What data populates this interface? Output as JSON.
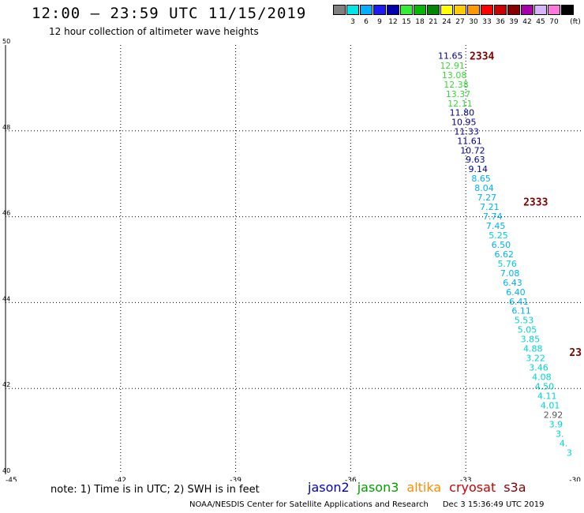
{
  "header": {
    "title": "12:00 – 23:59 UTC 11/15/2019",
    "subtitle": "12 hour collection of altimeter wave heights"
  },
  "colorbar": {
    "unit": "(ft)",
    "bins": [
      {
        "color": "#808080",
        "label": ""
      },
      {
        "color": "#00e5e5",
        "label": "3"
      },
      {
        "color": "#00b0ff",
        "label": "6"
      },
      {
        "color": "#1c1cf0",
        "label": "9"
      },
      {
        "color": "#0000b0",
        "label": "12"
      },
      {
        "color": "#33ee33",
        "label": "15"
      },
      {
        "color": "#00bb00",
        "label": "18"
      },
      {
        "color": "#008800",
        "label": "21"
      },
      {
        "color": "#ffff00",
        "label": "24"
      },
      {
        "color": "#ffcc00",
        "label": "27"
      },
      {
        "color": "#ff9900",
        "label": "30"
      },
      {
        "color": "#ff0000",
        "label": "33"
      },
      {
        "color": "#cc0000",
        "label": "36"
      },
      {
        "color": "#880000",
        "label": "39"
      },
      {
        "color": "#aa00aa",
        "label": "42"
      },
      {
        "color": "#d8b4ff",
        "label": "45"
      },
      {
        "color": "#ff77dd",
        "label": "70"
      },
      {
        "color": "#000000",
        "label": ""
      }
    ]
  },
  "axes": {
    "x_ticks": [
      {
        "value": -45,
        "label": "-45"
      },
      {
        "value": -42,
        "label": "-42"
      },
      {
        "value": -39,
        "label": "-39"
      },
      {
        "value": -36,
        "label": "-36"
      },
      {
        "value": -33,
        "label": "-33"
      },
      {
        "value": -30,
        "label": "-30"
      }
    ],
    "y_ticks": [
      {
        "value": 40,
        "label": "40"
      },
      {
        "value": 42,
        "label": "42"
      },
      {
        "value": 44,
        "label": "44"
      },
      {
        "value": 46,
        "label": "46"
      },
      {
        "value": 48,
        "label": "48"
      },
      {
        "value": 50,
        "label": "50"
      }
    ],
    "xlim": [
      -45,
      -30
    ],
    "ylim": [
      40,
      50
    ]
  },
  "colors": {
    "jason2": "#0000cc",
    "jason3": "#00a000",
    "altika": "#ff8c00",
    "cryosat": "#cc0000",
    "s3a": "#800000",
    "navy": "#00009a",
    "cyan": "#00d2d2",
    "green": "#33dd33",
    "gray": "#555555",
    "maroon": "#800000"
  },
  "track_labels": [
    {
      "text": "2334",
      "lon": -32.9,
      "lat": 49.75,
      "color": "#800000"
    },
    {
      "text": "2333",
      "lon": -31.5,
      "lat": 46.35,
      "color": "#800000"
    },
    {
      "text": "23",
      "lon": -30.3,
      "lat": 42.85,
      "color": "#800000"
    }
  ],
  "chart_data": {
    "type": "scatter",
    "xlim": [
      -45,
      -30
    ],
    "ylim": [
      40,
      50
    ],
    "grid": true,
    "points": [
      {
        "lon": -33.4,
        "lat": 49.75,
        "value": "11.65",
        "color": "#00009a"
      },
      {
        "lon": -33.35,
        "lat": 49.52,
        "value": "12.91",
        "color": "#33dd33"
      },
      {
        "lon": -33.3,
        "lat": 49.3,
        "value": "13.08",
        "color": "#33dd33"
      },
      {
        "lon": -33.25,
        "lat": 49.08,
        "value": "12.38",
        "color": "#33dd33"
      },
      {
        "lon": -33.2,
        "lat": 48.86,
        "value": "13.37",
        "color": "#33dd33"
      },
      {
        "lon": -33.15,
        "lat": 48.64,
        "value": "12.11",
        "color": "#33dd33"
      },
      {
        "lon": -33.1,
        "lat": 48.43,
        "value": "11.80",
        "color": "#00009a"
      },
      {
        "lon": -33.05,
        "lat": 48.21,
        "value": "10.95",
        "color": "#00009a"
      },
      {
        "lon": -32.98,
        "lat": 47.99,
        "value": "11.33",
        "color": "#00009a"
      },
      {
        "lon": -32.9,
        "lat": 47.77,
        "value": "11.61",
        "color": "#00009a"
      },
      {
        "lon": -32.82,
        "lat": 47.55,
        "value": "10.72",
        "color": "#00009a"
      },
      {
        "lon": -32.75,
        "lat": 47.33,
        "value": "9.63",
        "color": "#00009a"
      },
      {
        "lon": -32.68,
        "lat": 47.11,
        "value": "9.14",
        "color": "#00009a"
      },
      {
        "lon": -32.6,
        "lat": 46.89,
        "value": "8.65",
        "color": "#00b0ff"
      },
      {
        "lon": -32.52,
        "lat": 46.67,
        "value": "8.04",
        "color": "#00b0ff"
      },
      {
        "lon": -32.45,
        "lat": 46.45,
        "value": "7.27",
        "color": "#00b0ff"
      },
      {
        "lon": -32.38,
        "lat": 46.23,
        "value": "7.21",
        "color": "#00b0ff"
      },
      {
        "lon": -32.3,
        "lat": 46.01,
        "value": "7.74",
        "color": "#00b0ff"
      },
      {
        "lon": -32.22,
        "lat": 45.79,
        "value": "7.45",
        "color": "#00b0ff"
      },
      {
        "lon": -32.15,
        "lat": 45.57,
        "value": "5.25",
        "color": "#00d2d2"
      },
      {
        "lon": -32.08,
        "lat": 45.35,
        "value": "6.50",
        "color": "#00b0ff"
      },
      {
        "lon": -32.0,
        "lat": 45.13,
        "value": "6.62",
        "color": "#00b0ff"
      },
      {
        "lon": -31.92,
        "lat": 44.91,
        "value": "5.76",
        "color": "#00d2d2"
      },
      {
        "lon": -31.85,
        "lat": 44.69,
        "value": "7.08",
        "color": "#00b0ff"
      },
      {
        "lon": -31.78,
        "lat": 44.47,
        "value": "6.43",
        "color": "#00b0ff"
      },
      {
        "lon": -31.7,
        "lat": 44.25,
        "value": "6.40",
        "color": "#00b0ff"
      },
      {
        "lon": -31.62,
        "lat": 44.03,
        "value": "6.41",
        "color": "#00b0ff"
      },
      {
        "lon": -31.55,
        "lat": 43.81,
        "value": "6.11",
        "color": "#00b0ff"
      },
      {
        "lon": -31.48,
        "lat": 43.59,
        "value": "5.53",
        "color": "#00d2d2"
      },
      {
        "lon": -31.4,
        "lat": 43.37,
        "value": "5.05",
        "color": "#00d2d2"
      },
      {
        "lon": -31.32,
        "lat": 43.15,
        "value": "3.85",
        "color": "#00d2d2"
      },
      {
        "lon": -31.25,
        "lat": 42.93,
        "value": "4.88",
        "color": "#00d2d2"
      },
      {
        "lon": -31.18,
        "lat": 42.71,
        "value": "3.22",
        "color": "#00d2d2"
      },
      {
        "lon": -31.1,
        "lat": 42.49,
        "value": "3.46",
        "color": "#00d2d2"
      },
      {
        "lon": -31.02,
        "lat": 42.27,
        "value": "4.08",
        "color": "#00d2d2"
      },
      {
        "lon": -30.95,
        "lat": 42.05,
        "value": "4.50",
        "color": "#00d2d2"
      },
      {
        "lon": -30.88,
        "lat": 41.83,
        "value": "4.11",
        "color": "#00d2d2"
      },
      {
        "lon": -30.8,
        "lat": 41.61,
        "value": "4.01",
        "color": "#00d2d2"
      },
      {
        "lon": -30.72,
        "lat": 41.39,
        "value": "2.92",
        "color": "#555555"
      },
      {
        "lon": -30.65,
        "lat": 41.17,
        "value": "3.9",
        "color": "#00d2d2"
      },
      {
        "lon": -30.55,
        "lat": 40.95,
        "value": "3.",
        "color": "#00d2d2"
      },
      {
        "lon": -30.45,
        "lat": 40.73,
        "value": "4.",
        "color": "#00d2d2"
      },
      {
        "lon": -30.3,
        "lat": 40.51,
        "value": "3",
        "color": "#00d2d2"
      }
    ]
  },
  "footer": {
    "note": "note: 1) Time is in UTC; 2) SWH is in feet",
    "legend": {
      "jason2": "jason2",
      "jason3": "jason3",
      "altika": "altika",
      "cryosat": "cryosat",
      "s3a": "s3a"
    },
    "credit": "NOAA/NESDIS Center for Satellite Applications and Research",
    "timestamp": "Dec  3 15:36:49 UTC 2019"
  }
}
